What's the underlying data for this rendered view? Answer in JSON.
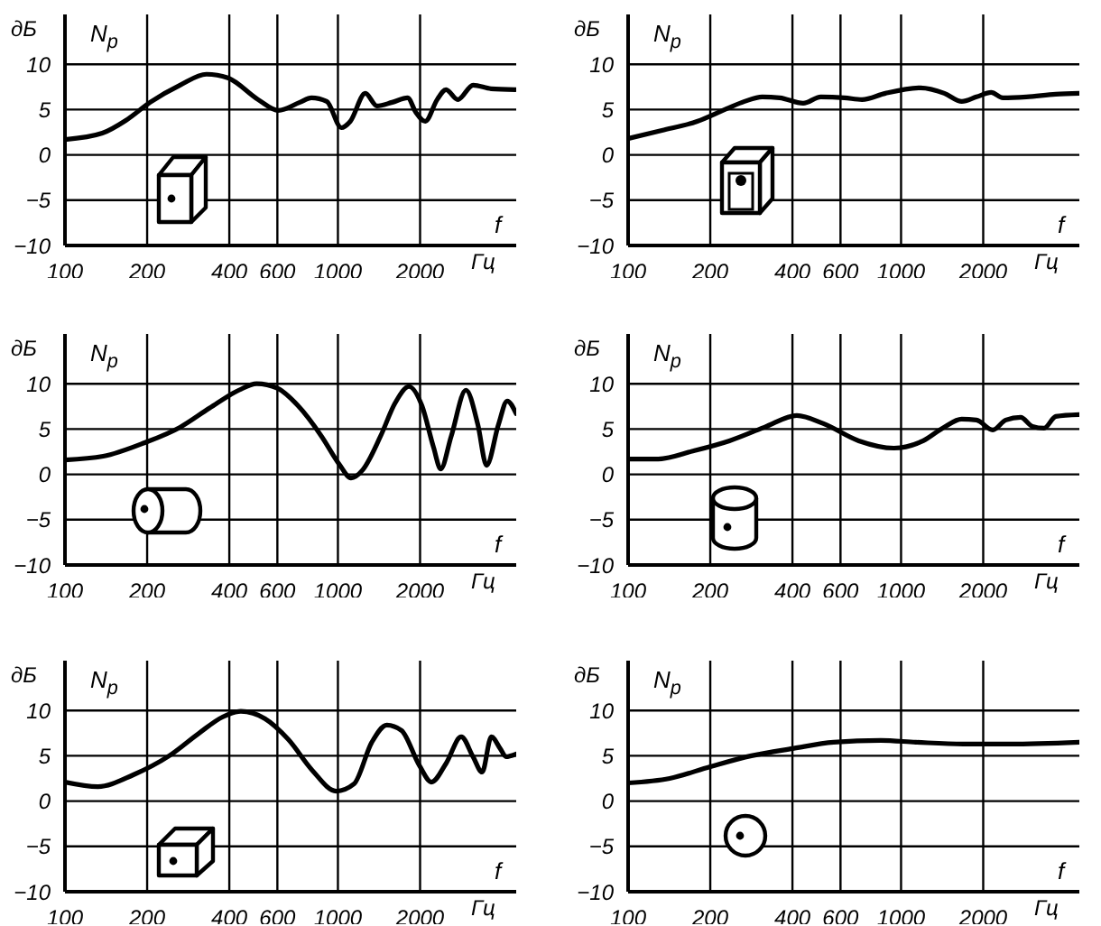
{
  "chart_data": [
    {
      "type": "line",
      "ylabel": "дБ",
      "xlabel": "Гц",
      "annotations": [
        "N$_{p}$",
        "f"
      ],
      "color": "#000000",
      "log": "x",
      "grid": true,
      "xlim": [
        100,
        4500
      ],
      "xticks": [
        100,
        200,
        400,
        600,
        1000,
        2000
      ],
      "ylim": [
        -10,
        15.5
      ],
      "yticks": [
        -10,
        -5,
        0,
        5,
        10
      ],
      "x": [
        100,
        137,
        167,
        205,
        264,
        330,
        395,
        510,
        605,
        725,
        800,
        910,
        1030,
        1110,
        1260,
        1390,
        1580,
        1800,
        1930,
        2090,
        2310,
        2490,
        2750,
        3130,
        3640,
        4470
      ],
      "values": [
        1.7,
        2.4,
        3.8,
        5.8,
        7.7,
        8.9,
        8.5,
        6.1,
        4.9,
        5.8,
        6.3,
        5.9,
        3.0,
        3.7,
        6.8,
        5.4,
        5.8,
        6.3,
        4.7,
        3.7,
        6.1,
        7.2,
        6.1,
        7.7,
        7.3,
        7.2
      ]
    },
    {
      "type": "line",
      "ylabel": "дБ",
      "xlabel": "Гц",
      "annotations": [
        "N$_{p}$",
        "f"
      ],
      "color": "#000000",
      "log": "x",
      "grid": true,
      "xlim": [
        100,
        4500
      ],
      "xticks": [
        100,
        200,
        400,
        600,
        1000,
        2000
      ],
      "ylim": [
        -10,
        15.5
      ],
      "yticks": [
        -10,
        -5,
        0,
        5,
        10
      ],
      "x": [
        100,
        133,
        179,
        230,
        267,
        310,
        359,
        438,
        508,
        620,
        719,
        877,
        1180,
        1440,
        1670,
        1890,
        2140,
        2360,
        2880,
        3690,
        4500
      ],
      "values": [
        1.8,
        2.7,
        3.7,
        5.1,
        5.9,
        6.4,
        6.3,
        5.7,
        6.4,
        6.3,
        6.1,
        6.8,
        7.4,
        6.8,
        5.9,
        6.4,
        6.9,
        6.3,
        6.4,
        6.7,
        6.8
      ]
    },
    {
      "type": "line",
      "ylabel": "дБ",
      "xlabel": "Гц",
      "annotations": [
        "N$_{p}$",
        "f"
      ],
      "color": "#000000",
      "log": "x",
      "grid": true,
      "xlim": [
        100,
        4500
      ],
      "xticks": [
        100,
        200,
        400,
        600,
        1000,
        2000
      ],
      "ylim": [
        -10,
        15.5
      ],
      "yticks": [
        -10,
        -5,
        0,
        5,
        10
      ],
      "x": [
        100,
        138,
        196,
        264,
        338,
        434,
        504,
        600,
        713,
        871,
        1012,
        1117,
        1233,
        1432,
        1622,
        1820,
        2030,
        2240,
        2380,
        2600,
        2945,
        3255,
        3505,
        3875,
        4170,
        4500
      ],
      "values": [
        1.6,
        2.0,
        3.5,
        5.2,
        7.3,
        9.3,
        10.0,
        9.5,
        7.6,
        4.2,
        1.1,
        -0.4,
        0.5,
        4.2,
        7.9,
        9.7,
        7.6,
        3.0,
        0.6,
        4.2,
        9.3,
        5.5,
        1.0,
        5.5,
        8.1,
        6.7
      ]
    },
    {
      "type": "line",
      "ylabel": "дБ",
      "xlabel": "Гц",
      "annotations": [
        "N$_{p}$",
        "f"
      ],
      "color": "#000000",
      "log": "x",
      "grid": true,
      "xlim": [
        100,
        4500
      ],
      "xticks": [
        100,
        200,
        400,
        600,
        1000,
        2000
      ],
      "ylim": [
        -10,
        15.5
      ],
      "yticks": [
        -10,
        -5,
        0,
        5,
        10
      ],
      "x": [
        100,
        129,
        174,
        235,
        316,
        415,
        520,
        700,
        942,
        1205,
        1436,
        1667,
        1888,
        2168,
        2420,
        2742,
        3027,
        3342,
        3690,
        4500
      ],
      "values": [
        1.7,
        1.7,
        2.6,
        3.7,
        5.2,
        6.5,
        5.6,
        3.7,
        2.9,
        3.7,
        5.2,
        6.1,
        6.0,
        4.9,
        6.0,
        6.3,
        5.3,
        5.1,
        6.4,
        6.6
      ]
    },
    {
      "type": "line",
      "ylabel": "дБ",
      "xlabel": "Гц",
      "annotations": [
        "N$_{p}$",
        "f"
      ],
      "color": "#000000",
      "log": "x",
      "grid": true,
      "xlim": [
        100,
        4500
      ],
      "xticks": [
        100,
        200,
        400,
        600,
        1000,
        2000
      ],
      "ylim": [
        -10,
        15.5
      ],
      "yticks": [
        -10,
        -5,
        0,
        5,
        10
      ],
      "x": [
        100,
        132,
        178,
        241,
        310,
        379,
        441,
        540,
        658,
        805,
        985,
        1146,
        1331,
        1511,
        1710,
        1990,
        2200,
        2495,
        2830,
        3126,
        3375,
        3650,
        3930,
        4130,
        4500
      ],
      "values": [
        2.1,
        1.6,
        2.9,
        5.0,
        7.5,
        9.3,
        9.9,
        9.1,
        6.8,
        3.4,
        1.1,
        1.9,
        6.5,
        8.4,
        7.8,
        3.9,
        2.1,
        4.2,
        7.1,
        4.9,
        3.2,
        7.1,
        5.8,
        4.9,
        5.2
      ]
    },
    {
      "type": "line",
      "ylabel": "дБ",
      "xlabel": "Гц",
      "annotations": [
        "N$_{p}$",
        "f"
      ],
      "color": "#000000",
      "log": "x",
      "grid": true,
      "xlim": [
        100,
        4500
      ],
      "xticks": [
        100,
        200,
        400,
        600,
        1000,
        2000
      ],
      "ylim": [
        -10,
        15.5
      ],
      "yticks": [
        -10,
        -5,
        0,
        5,
        10
      ],
      "x": [
        100,
        142,
        200,
        283,
        401,
        566,
        843,
        1133,
        1687,
        2504,
        4500
      ],
      "values": [
        2.0,
        2.5,
        3.8,
        5.0,
        5.8,
        6.5,
        6.7,
        6.5,
        6.3,
        6.3,
        6.5
      ]
    }
  ]
}
